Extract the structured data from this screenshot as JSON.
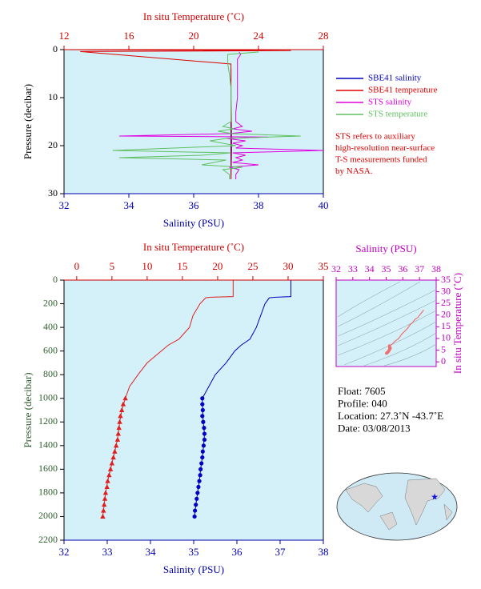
{
  "chart_data": [
    {
      "type": "profile",
      "xlim": [
        32,
        40
      ],
      "xticks": [
        32,
        34,
        36,
        38,
        40
      ],
      "xlabel": "Salinity (PSU)",
      "x_color": "#0000b0",
      "x2lim": [
        12,
        28
      ],
      "x2ticks": [
        12,
        16,
        20,
        24,
        28
      ],
      "x2label": "In situ Temperature (˚C)",
      "x2_color": "#d00000",
      "ylim": [
        0,
        30
      ],
      "yticks": [
        0,
        10,
        20,
        30
      ],
      "ylabel": "Pressure (decibar)",
      "y_color": "#000000",
      "y_inverted": true,
      "background": "#d4f1f9",
      "legend_position": "right",
      "series": [
        {
          "name": "SBE41 salinity",
          "color": "#0000c0",
          "axis": "x",
          "pressure": [
            4,
            10,
            20,
            27
          ],
          "values": [
            37.15,
            37.15,
            37.15,
            37.15
          ]
        },
        {
          "name": "SBE41 temperature",
          "color": "#e00000",
          "axis": "x2",
          "pressure": [
            0,
            0.2,
            0.4,
            3,
            10,
            20,
            27
          ],
          "values": [
            12,
            26,
            13,
            22.3,
            22.3,
            22.35,
            22.3
          ]
        },
        {
          "name": "STS salinity",
          "color": "#e000e0",
          "axis": "x",
          "pressure": [
            0.5,
            1,
            2,
            5,
            8,
            10,
            13,
            15,
            16,
            16.5,
            17,
            17.5,
            18,
            18.2,
            18.5,
            19,
            19.5,
            20,
            20.5,
            21,
            21.5,
            22,
            22.5,
            23,
            23.5,
            24,
            24.5,
            25,
            26,
            27
          ],
          "values": [
            37.4,
            37.45,
            37.35,
            37.35,
            37.35,
            37.35,
            37.3,
            37.3,
            37.5,
            37.2,
            37.8,
            37.1,
            33.7,
            38.3,
            37.0,
            37.6,
            37.2,
            37.5,
            37.3,
            40.0,
            37.2,
            37.6,
            37.3,
            37.5,
            37.2,
            38.0,
            37.1,
            37.4,
            37.3,
            37.3
          ]
        },
        {
          "name": "STS temperature",
          "color": "#60c060",
          "axis": "x2",
          "pressure": [
            0.5,
            1,
            3,
            5,
            8,
            10,
            12,
            15,
            16,
            16.5,
            17,
            17.5,
            18,
            18.5,
            19,
            20,
            21,
            21.5,
            22,
            22.5,
            23,
            24,
            24.5,
            25,
            26,
            27
          ],
          "values": [
            24,
            22.1,
            22.1,
            22.2,
            22.3,
            22.3,
            22.3,
            22.3,
            21.8,
            22.5,
            21.5,
            22.4,
            26.6,
            22.0,
            21.0,
            22.6,
            15.0,
            22.3,
            20.5,
            15.4,
            22.0,
            20.5,
            23,
            21.8,
            22.2,
            22.2
          ]
        }
      ],
      "note": [
        "STS refers to auxiliary",
        "high-resolution near-surface",
        "T-S measurements funded",
        "by NASA."
      ],
      "note_color": "#e00000"
    },
    {
      "type": "profile",
      "xlim": [
        32,
        38
      ],
      "xticks": [
        32,
        33,
        34,
        35,
        36,
        37,
        38
      ],
      "xlabel": "Salinity (PSU)",
      "x_color": "#0000b0",
      "x2lim": [
        -1.8,
        35
      ],
      "x2ticks": [
        0,
        5,
        10,
        15,
        20,
        25,
        30,
        35
      ],
      "x2label": "In situ Temperature (˚C)",
      "x2_color": "#d00000",
      "ylim": [
        0,
        2200
      ],
      "yticks": [
        0,
        200,
        400,
        600,
        800,
        1000,
        1200,
        1400,
        1600,
        1800,
        2000,
        2200
      ],
      "ylabel": "Pressure (decibar)",
      "y_color": "#2f5f2f",
      "y_inverted": true,
      "background": "#d4f1f9",
      "series": [
        {
          "color": "#0000c0",
          "axis": "x",
          "pressure": [
            0,
            50,
            100,
            140,
            145,
            150,
            200,
            250,
            300,
            400,
            500,
            550,
            600,
            650,
            700,
            800,
            900,
            1000,
            1100,
            1200,
            1300,
            1400,
            1500,
            1600,
            1700,
            1800,
            1900,
            2000
          ],
          "values": [
            37.25,
            37.25,
            37.25,
            37.25,
            36.9,
            36.75,
            36.65,
            36.6,
            36.55,
            36.45,
            36.3,
            36.1,
            35.95,
            35.85,
            35.75,
            35.5,
            35.35,
            35.2,
            35.21,
            35.22,
            35.25,
            35.23,
            35.2,
            35.16,
            35.13,
            35.09,
            35.05,
            35.02
          ]
        },
        {
          "color": "#e02020",
          "axis": "x2",
          "pressure": [
            0,
            50,
            100,
            140,
            145,
            150,
            200,
            250,
            300,
            400,
            500,
            550,
            600,
            650,
            700,
            800,
            900,
            1000,
            1100,
            1200,
            1300,
            1400,
            1500,
            1600,
            1700,
            1800,
            1900,
            2000
          ],
          "values": [
            22.2,
            22.2,
            22.2,
            22.2,
            19,
            18.3,
            17.5,
            17,
            16.5,
            16,
            14.5,
            13,
            12,
            11,
            10,
            8.7,
            7.5,
            6.9,
            6.4,
            6.1,
            5.9,
            5.6,
            5.2,
            4.8,
            4.4,
            4.1,
            3.9,
            3.7
          ]
        },
        {
          "color": "#0000c0",
          "axis": "x",
          "marker": "circle",
          "pressure": [
            1000,
            1050,
            1100,
            1150,
            1200,
            1250,
            1300,
            1350,
            1400,
            1450,
            1500,
            1550,
            1600,
            1650,
            1700,
            1750,
            1800,
            1850,
            1900,
            1950,
            2000
          ],
          "values": [
            35.2,
            35.2,
            35.21,
            35.2,
            35.22,
            35.24,
            35.25,
            35.25,
            35.23,
            35.21,
            35.2,
            35.18,
            35.16,
            35.15,
            35.13,
            35.11,
            35.09,
            35.07,
            35.05,
            35.03,
            35.02
          ]
        },
        {
          "color": "#e02020",
          "axis": "x2",
          "marker": "triangle",
          "pressure": [
            1000,
            1050,
            1100,
            1150,
            1200,
            1250,
            1300,
            1350,
            1400,
            1450,
            1500,
            1550,
            1600,
            1650,
            1700,
            1750,
            1800,
            1850,
            1900,
            1950,
            2000
          ],
          "values": [
            6.9,
            6.6,
            6.4,
            6.2,
            6.1,
            6.0,
            5.9,
            5.8,
            5.6,
            5.4,
            5.2,
            5.0,
            4.8,
            4.6,
            4.4,
            4.3,
            4.1,
            4.0,
            3.9,
            3.8,
            3.7
          ]
        }
      ]
    },
    {
      "type": "ts",
      "xlim": [
        32,
        38
      ],
      "xticks": [
        32,
        33,
        34,
        35,
        36,
        37,
        38
      ],
      "xlabel": "Salinity (PSU)",
      "ylim": [
        -2,
        35
      ],
      "yticks": [
        0,
        5,
        10,
        15,
        20,
        25,
        30,
        35
      ],
      "ylabel": "In situ Temperature (˚C)",
      "axis_color": "#c000c0",
      "color": "#f07070",
      "background": "#d4f1f9"
    }
  ],
  "float_info": [
    "Float:  7605",
    "Profile:  040",
    "Location:  27.3˚N  -43.7˚E",
    "Date:  03/08/2013"
  ]
}
